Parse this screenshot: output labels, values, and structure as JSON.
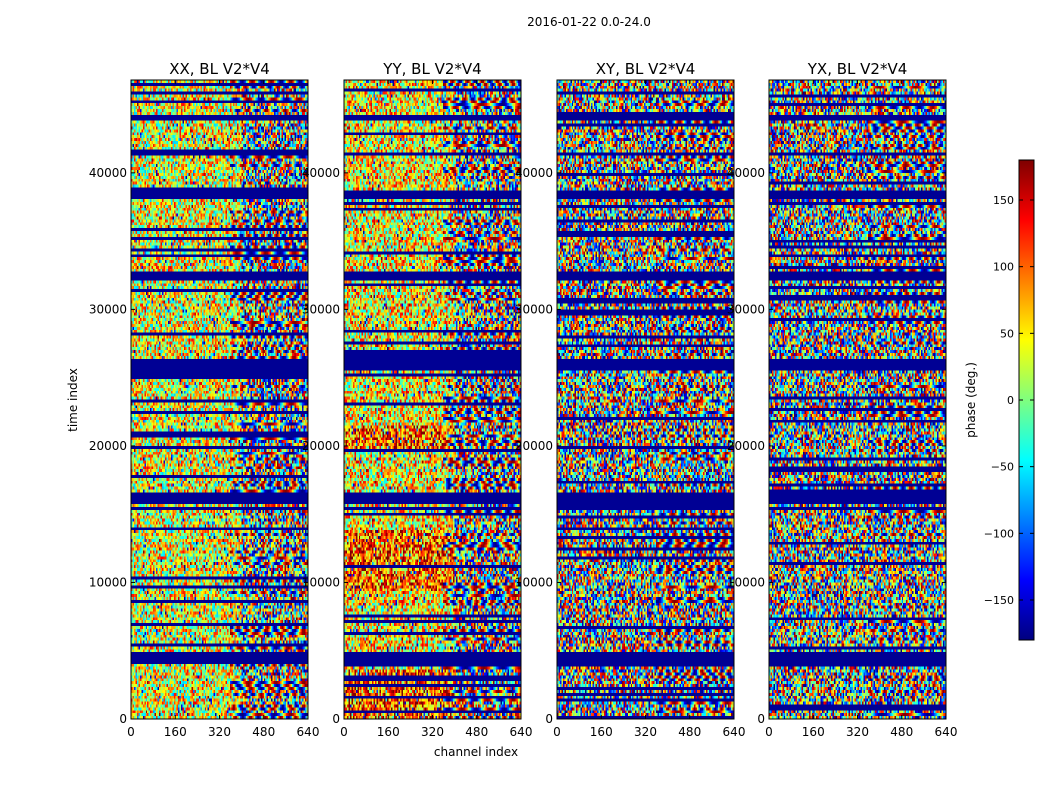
{
  "figure": {
    "suptitle": "2016-01-22 0.0-24.0",
    "xlabel": "channel index",
    "ylabel": "time index",
    "colorbar": {
      "label": "phase (deg.)",
      "min": -180,
      "max": 180,
      "ticks": [
        -150,
        -100,
        -50,
        0,
        50,
        100,
        150
      ],
      "tick_labels": [
        "−150",
        "−100",
        "−50",
        "0",
        "50",
        "100",
        "150"
      ],
      "colormap": "jet",
      "colormap_stops": [
        "#00007f",
        "#0000ff",
        "#007fff",
        "#00ffff",
        "#7fff7f",
        "#ffff00",
        "#ff7f00",
        "#ff0000",
        "#7f0000"
      ]
    }
  },
  "chart_data": [
    {
      "type": "heatmap",
      "title": "XX, BL V2*V4",
      "xlim": [
        0,
        640
      ],
      "ylim": [
        0,
        46800
      ],
      "xticks": [
        0,
        160,
        320,
        480,
        640
      ],
      "yticks": [
        0,
        10000,
        20000,
        30000,
        40000
      ],
      "value_range": [
        -180,
        180
      ],
      "variant": "xx"
    },
    {
      "type": "heatmap",
      "title": "YY, BL V2*V4",
      "xlim": [
        0,
        640
      ],
      "ylim": [
        0,
        46800
      ],
      "xticks": [
        0,
        160,
        320,
        480,
        640
      ],
      "yticks": [
        0,
        10000,
        20000,
        30000,
        40000
      ],
      "value_range": [
        -180,
        180
      ],
      "variant": "yy"
    },
    {
      "type": "heatmap",
      "title": "XY, BL V2*V4",
      "xlim": [
        0,
        640
      ],
      "ylim": [
        0,
        46800
      ],
      "xticks": [
        0,
        160,
        320,
        480,
        640
      ],
      "yticks": [
        0,
        10000,
        20000,
        30000,
        40000
      ],
      "value_range": [
        -180,
        180
      ],
      "variant": "xy"
    },
    {
      "type": "heatmap",
      "title": "YX, BL V2*V4",
      "xlim": [
        0,
        640
      ],
      "ylim": [
        0,
        46800
      ],
      "xticks": [
        0,
        160,
        320,
        480,
        640
      ],
      "yticks": [
        0,
        10000,
        20000,
        30000,
        40000
      ],
      "value_range": [
        -180,
        180
      ],
      "variant": "yx"
    }
  ]
}
